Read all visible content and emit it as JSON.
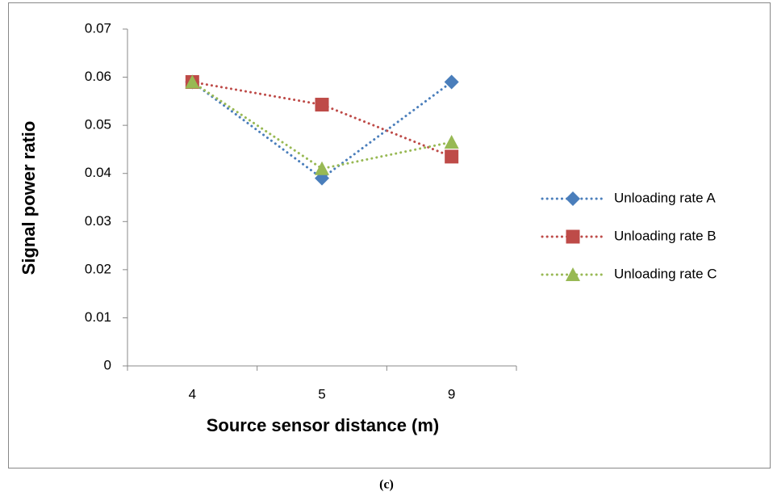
{
  "chart_data": {
    "type": "line",
    "x_label": "Source sensor distance (m)",
    "y_label": "Signal power ratio",
    "categories": [
      "4",
      "5",
      "9"
    ],
    "series": [
      {
        "name": "Unloading rate A",
        "color": "#4a7ebb",
        "marker": "diamond",
        "values": [
          0.059,
          0.039,
          0.059
        ]
      },
      {
        "name": "Unloading rate B",
        "color": "#be4b48",
        "marker": "square",
        "values": [
          0.059,
          0.0543,
          0.0435
        ]
      },
      {
        "name": "Unloading rate C",
        "color": "#98b954",
        "marker": "triangle",
        "values": [
          0.059,
          0.041,
          0.0465
        ]
      }
    ],
    "ylim": [
      0,
      0.07
    ],
    "yticks": [
      0,
      0.01,
      0.02,
      0.03,
      0.04,
      0.05,
      0.06,
      0.07
    ],
    "grid": false,
    "legend": "right"
  },
  "caption": "(c)"
}
